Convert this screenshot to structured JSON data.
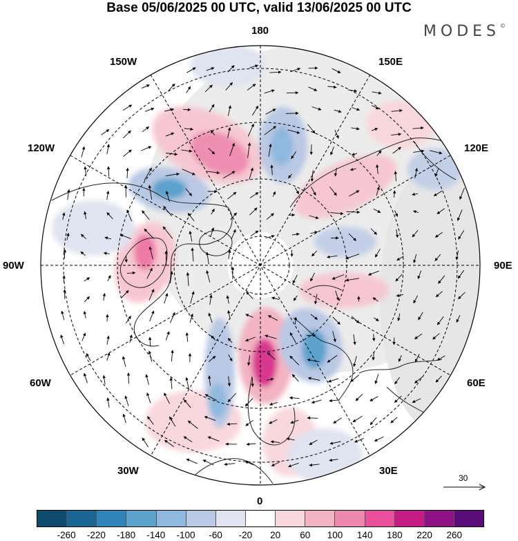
{
  "title": "Base 05/06/2025 00 UTC, valid 13/06/2025 00 UTC",
  "brand": "MODES",
  "brand_mark": "©",
  "longitude_labels": {
    "top": "180",
    "top_left": "150W",
    "top_right": "150E",
    "upper_left": "120W",
    "upper_right": "120E",
    "left": "90W",
    "right": "90E",
    "lower_left": "60W",
    "lower_right": "60E",
    "bottom_left": "30W",
    "bottom_right": "30E",
    "bottom": "0"
  },
  "wind_scale": {
    "label": "30",
    "icon": "arrow-right-icon"
  },
  "colorbar": {
    "colors": [
      "#0d4a6b",
      "#1a6594",
      "#2f85b8",
      "#5ba2cd",
      "#8eb8dd",
      "#b9c8e4",
      "#e0e3f0",
      "#ffffff",
      "#f9d8dd",
      "#f3b3c3",
      "#ee88ae",
      "#e8509c",
      "#c41d84",
      "#8e1185",
      "#5c0c78"
    ],
    "ticks": [
      "-260",
      "-220",
      "-180",
      "-140",
      "-100",
      "-60",
      "-20",
      "20",
      "60",
      "100",
      "140",
      "180",
      "220",
      "260"
    ]
  }
}
